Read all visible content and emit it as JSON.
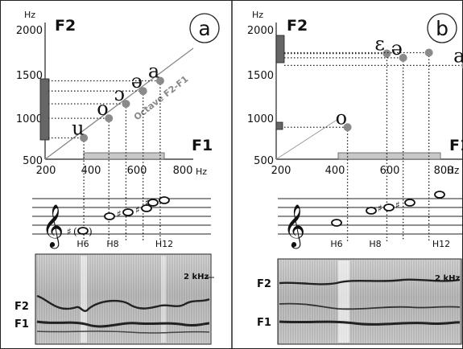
{
  "axis_unit": "Hz",
  "panels": [
    {
      "id": "a",
      "letter": "a",
      "f2_label": "F2",
      "f1_label": "F1",
      "y_ticks": [
        "2000",
        "1500",
        "1000",
        "500"
      ],
      "x_ticks": [
        "200",
        "400",
        "600",
        "800"
      ],
      "octave_label": "Octave F2-F1",
      "vowels": [
        {
          "symbol": "u",
          "f1": 370,
          "f2": 750
        },
        {
          "symbol": "o",
          "f1": 480,
          "f2": 980
        },
        {
          "symbol": "ɔ",
          "f1": 555,
          "f2": 1150
        },
        {
          "symbol": "ə",
          "f1": 630,
          "f2": 1300
        },
        {
          "symbol": "a",
          "f1": 705,
          "f2": 1420
        }
      ],
      "harmonic_labels": [
        "H6",
        "H8",
        "H12"
      ],
      "spectrogram_marker": "2 kHz",
      "spectrogram_f2": "F2",
      "spectrogram_f1": "F1"
    },
    {
      "id": "b",
      "letter": "b",
      "f2_label": "F2",
      "f1_label": "F1",
      "y_ticks": [
        "2000",
        "1500",
        "1000",
        "500"
      ],
      "x_ticks": [
        "200",
        "400",
        "600",
        "800"
      ],
      "vowels": [
        {
          "symbol": "o",
          "f1": 445,
          "f2": 875
        },
        {
          "symbol": "ɛ",
          "f1": 590,
          "f2": 1740
        },
        {
          "symbol": "ə",
          "f1": 650,
          "f2": 1690
        },
        {
          "symbol": "",
          "f1": 745,
          "f2": 1750
        },
        {
          "symbol": "a",
          "f1": 880,
          "f2": 1600
        }
      ],
      "harmonic_labels": [
        "H6",
        "H8",
        "H12"
      ],
      "spectrogram_marker": "2 kHz",
      "spectrogram_f2": "F2",
      "spectrogram_f1": "F1"
    }
  ]
}
